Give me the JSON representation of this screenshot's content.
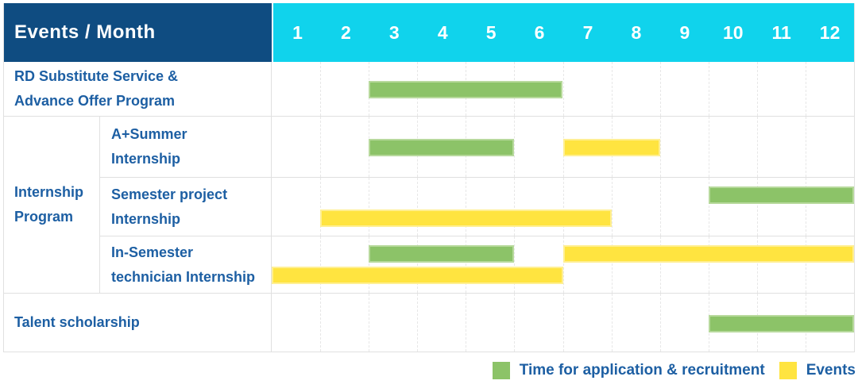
{
  "colors": {
    "header_bg": "#0f4c81",
    "months_bg": "#10d3ec",
    "green": "#8cc368",
    "yellow": "#ffe440",
    "text_blue": "#1d5fa3",
    "grid_line": "#e0e0e0"
  },
  "header": {
    "title": "Events / Month",
    "months": [
      "1",
      "2",
      "3",
      "4",
      "5",
      "6",
      "7",
      "8",
      "9",
      "10",
      "11",
      "12"
    ]
  },
  "sections": [
    {
      "type": "row",
      "label_lines": [
        "RD Substitute Service &",
        "Advance Offer Program"
      ],
      "height": 68,
      "bars": [
        {
          "type": "application",
          "start": 3,
          "end": 7,
          "lane": "center"
        }
      ]
    },
    {
      "type": "group",
      "label_lines": [
        "Internship",
        "Program"
      ],
      "rows": [
        {
          "label_lines": [
            "A+Summer",
            "Internship"
          ],
          "height": 76,
          "bars": [
            {
              "type": "application",
              "start": 3,
              "end": 6,
              "lane": "center"
            },
            {
              "type": "event",
              "start": 7,
              "end": 9,
              "lane": "center"
            }
          ]
        },
        {
          "label_lines": [
            "Semester project",
            "Internship"
          ],
          "height": 74,
          "bars": [
            {
              "type": "application",
              "start": 10,
              "end": 13,
              "lane": "upper"
            },
            {
              "type": "event",
              "start": 2,
              "end": 8,
              "lane": "lower"
            }
          ]
        },
        {
          "label_lines": [
            "In-Semester",
            "technician Internship"
          ],
          "height": 72,
          "bars": [
            {
              "type": "application",
              "start": 3,
              "end": 6,
              "lane": "upper"
            },
            {
              "type": "event",
              "start": 7,
              "end": 13,
              "lane": "upper"
            },
            {
              "type": "event",
              "start": 1,
              "end": 7,
              "lane": "lower"
            }
          ]
        }
      ]
    },
    {
      "type": "row",
      "label_lines": [
        "Talent scholarship"
      ],
      "height": 74,
      "bars": [
        {
          "type": "application",
          "start": 10,
          "end": 13,
          "lane": "center"
        }
      ]
    }
  ],
  "legend": {
    "items": [
      {
        "label": "Time for application & recruitment",
        "type": "application",
        "color": "#8cc368"
      },
      {
        "label": "Events",
        "type": "event",
        "color": "#ffe440"
      }
    ]
  },
  "chart_data": {
    "type": "table",
    "title": "Events / Month",
    "x": {
      "label": "Month",
      "ticks": [
        1,
        2,
        3,
        4,
        5,
        6,
        7,
        8,
        9,
        10,
        11,
        12
      ]
    },
    "legend": [
      "Time for application & recruitment",
      "Events"
    ],
    "legend_position": "bottom-right",
    "grid": true,
    "rows": [
      {
        "event": "RD Substitute Service & Advance Offer Program",
        "group": null,
        "application_recruitment_months": [
          [
            3,
            6
          ]
        ],
        "event_months": []
      },
      {
        "event": "A+Summer Internship",
        "group": "Internship Program",
        "application_recruitment_months": [
          [
            3,
            5
          ]
        ],
        "event_months": [
          [
            7,
            8
          ]
        ]
      },
      {
        "event": "Semester project Internship",
        "group": "Internship Program",
        "application_recruitment_months": [
          [
            10,
            12
          ]
        ],
        "event_months": [
          [
            2,
            7
          ]
        ]
      },
      {
        "event": "In-Semester technician Internship",
        "group": "Internship Program",
        "application_recruitment_months": [
          [
            3,
            5
          ]
        ],
        "event_months": [
          [
            1,
            6
          ],
          [
            7,
            12
          ]
        ]
      },
      {
        "event": "Talent scholarship",
        "group": null,
        "application_recruitment_months": [
          [
            10,
            12
          ]
        ],
        "event_months": []
      }
    ]
  }
}
